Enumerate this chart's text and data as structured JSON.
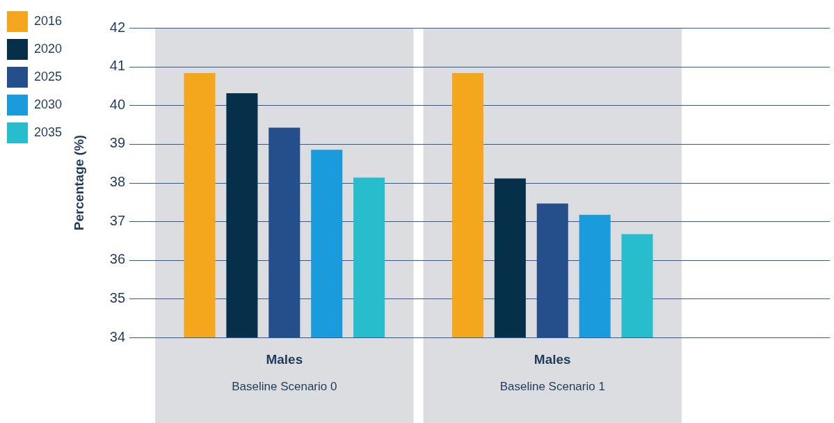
{
  "chart_data": {
    "type": "bar",
    "ylabel": "Percentage (%)",
    "categories": [
      "Males\nBaseline Scenario 0",
      "Males\nBaseline Scenario 1"
    ],
    "series": [
      {
        "name": "2016",
        "color": "#f4a61d",
        "values": [
          40.83,
          40.83
        ]
      },
      {
        "name": "2020",
        "color": "#06304a",
        "values": [
          40.31,
          38.11
        ]
      },
      {
        "name": "2025",
        "color": "#244f8a",
        "values": [
          39.42,
          37.46
        ]
      },
      {
        "name": "2030",
        "color": "#1a9bdb",
        "values": [
          38.85,
          37.17
        ]
      },
      {
        "name": "2035",
        "color": "#27bdcc",
        "values": [
          38.13,
          36.67
        ]
      }
    ],
    "bands": [
      {
        "axis": "x",
        "from": "Males\nBaseline Scenario 0",
        "to": "Males\nBaseline Scenario 0",
        "color": "#dcdde0"
      },
      {
        "axis": "x",
        "from": "Males\nBaseline Scenario 1",
        "to": "Males\nBaseline Scenario 1",
        "color": "#dcdde0"
      }
    ],
    "ylim": [
      34,
      42
    ],
    "yticks": [
      34,
      35,
      36,
      37,
      38,
      39,
      40,
      41,
      42
    ],
    "grid": "y",
    "legend": "left"
  }
}
